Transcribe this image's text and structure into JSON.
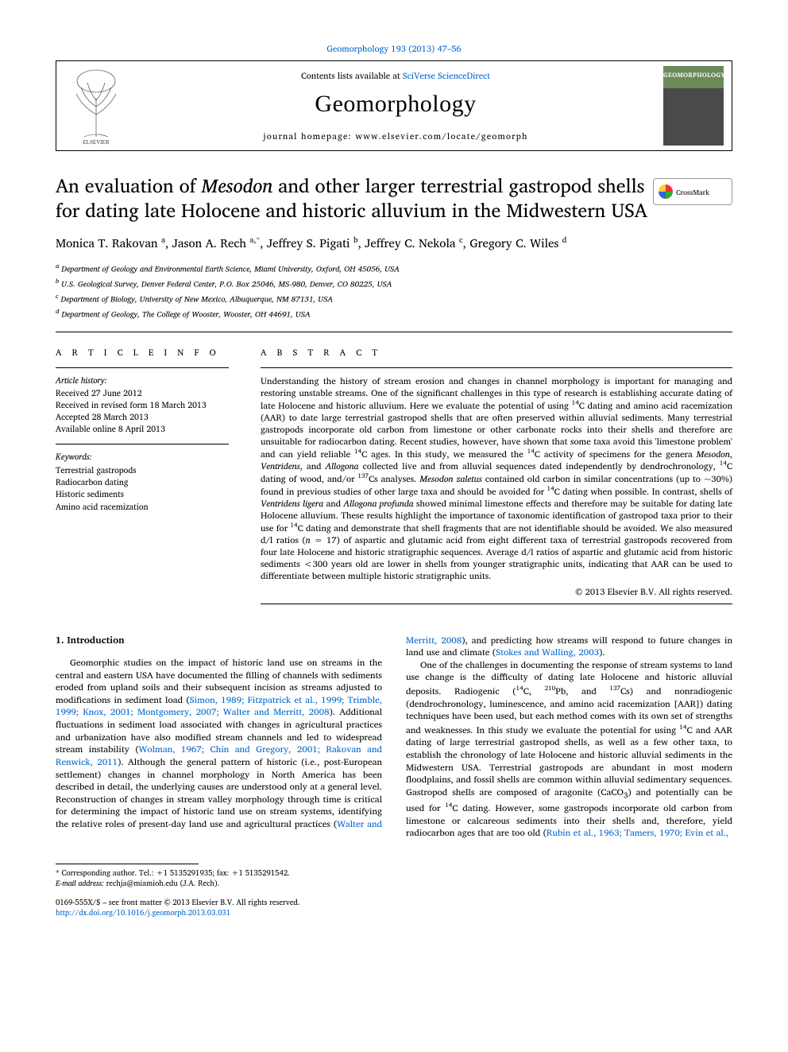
{
  "top_citation": "Geomorphology 193 (2013) 47–56",
  "banner": {
    "contents_prefix": "Contents lists available at ",
    "contents_link": "SciVerse ScienceDirect",
    "journal": "Geomorphology",
    "homepage_prefix": "journal homepage: ",
    "homepage": "www.elsevier.com/locate/geomorph",
    "cover_label": "GEOMORPHOLOGY"
  },
  "crossmark_label": "CrossMark",
  "article": {
    "title_line1": "An evaluation of Mesodon and other larger terrestrial gastropod shells",
    "title_line2": "for dating late Holocene and historic alluvium in the Midwestern USA",
    "authors_html": "Monica T. Rakovan <sup>a</sup>, Jason A. Rech <sup>a,</sup><sup class='corr'>*</sup>, Jeffrey S. Pigati <sup>b</sup>, Jeffrey C. Nekola <sup>c</sup>, Gregory C. Wiles <sup>d</sup>",
    "affiliations": [
      "a  Department of Geology and Environmental Earth Science, Miami University, Oxford, OH 45056, USA",
      "b  U.S. Geological Survey, Denver Federal Center, P.O. Box 25046, MS-980, Denver, CO 80225, USA",
      "c  Department of Biology, University of New Mexico, Albuquerque, NM 87131, USA",
      "d  Department of Geology, The College of Wooster, Wooster, OH 44691, USA"
    ]
  },
  "info": {
    "heading": "A R T I C L E   I N F O",
    "history_label": "Article history:",
    "history": [
      "Received 27 June 2012",
      "Received in revised form 18 March 2013",
      "Accepted 28 March 2013",
      "Available online 8 April 2013"
    ],
    "keywords_label": "Keywords:",
    "keywords": [
      "Terrestrial gastropods",
      "Radiocarbon dating",
      "Historic sediments",
      "Amino acid racemization"
    ]
  },
  "abstract": {
    "heading": "A B S T R A C T",
    "text": "Understanding the history of stream erosion and changes in channel morphology is important for managing and restoring unstable streams. One of the significant challenges in this type of research is establishing accurate dating of late Holocene and historic alluvium. Here we evaluate the potential of using 14C dating and amino acid racemization (AAR) to date large terrestrial gastropod shells that are often preserved within alluvial sediments. Many terrestrial gastropods incorporate old carbon from limestone or other carbonate rocks into their shells and therefore are unsuitable for radiocarbon dating. Recent studies, however, have shown that some taxa avoid this 'limestone problem' and can yield reliable 14C ages. In this study, we measured the 14C activity of specimens for the genera Mesodon, Ventridens, and Allogona collected live and from alluvial sequences dated independently by dendrochronology, 14C dating of wood, and/or 137Cs analyses. Mesodon zaletus contained old carbon in similar concentrations (up to ~30%) found in previous studies of other large taxa and should be avoided for 14C dating when possible. In contrast, shells of Ventridens ligera and Allogona profunda showed minimal limestone effects and therefore may be suitable for dating late Holocene alluvium. These results highlight the importance of taxonomic identification of gastropod taxa prior to their use for 14C dating and demonstrate that shell fragments that are not identifiable should be avoided. We also measured d/l ratios (n = 17) of aspartic and glutamic acid from eight different taxa of terrestrial gastropods recovered from four late Holocene and historic stratigraphic sequences. Average d/l ratios of aspartic and glutamic acid from historic sediments <300 years old are lower in shells from younger stratigraphic units, indicating that AAR can be used to differentiate between multiple historic stratigraphic units.",
    "copyright": "© 2013 Elsevier B.V. All rights reserved."
  },
  "body": {
    "section1_title": "1. Introduction",
    "p1a": "Geomorphic studies on the impact of historic land use on streams in the central and eastern USA have documented the filling of channels with sediments eroded from upland soils and their subsequent incision as streams adjusted to modifications in sediment load (",
    "p1_ref1": "Simon, 1989; Fitzpatrick et al., 1999; Trimble, 1999; Knox, 2001; Montgomery, 2007; Walter and Merritt, 2008",
    "p1b": "). Additional fluctuations in sediment load associated with changes in agricultural practices and urbanization have also modified stream channels and led to widespread stream instability (",
    "p1_ref2": "Wolman, 1967; Chin and Gregory, 2001; Rakovan and Renwick, 2011",
    "p1c": "). Although the general pattern of historic (i.e., post-European settlement) changes in channel morphology in North America has been described in detail, the underlying causes are understood only at a general level. Reconstruction of changes in stream valley morphology through time is critical for determining the impact of historic land use on stream systems, identifying the relative roles of present-day land use and agricultural practices (",
    "p1_ref3": "Walter and Merritt, 2008",
    "p1d": "), and predicting how streams will respond to future changes in land use and climate (",
    "p1_ref4": "Stokes and Walling, 2003",
    "p1e": ").",
    "p2a": "One of the challenges in documenting the response of stream systems to land use change is the difficulty of dating late Holocene and historic alluvial deposits. Radiogenic (14C, 210Pb, and 137Cs) and nonradiogenic (dendrochronology, luminescence, and amino acid racemization [AAR]) dating techniques have been used, but each method comes with its own set of strengths and weaknesses. In this study we evaluate the potential for using 14C and AAR dating of large terrestrial gastropod shells, as well as a few other taxa, to establish the chronology of late Holocene and historic alluvial sediments in the Midwestern USA. Terrestrial gastropods are abundant in most modern floodplains, and fossil shells are common within alluvial sedimentary sequences. Gastropod shells are composed of aragonite (CaCO3) and potentially can be used for 14C dating. However, some gastropods incorporate old carbon from limestone or calcareous sediments into their shells and, therefore, yield radiocarbon ages that are too old (",
    "p2_ref1": "Rubin et al., 1963; Tamers, 1970; Evin et al.,"
  },
  "footnotes": {
    "corr": "* Corresponding author. Tel.: +1 5135291935; fax: +1 5135291542.",
    "email_label": "E-mail address: ",
    "email": "rechja@miamioh.edu",
    "email_suffix": " (J.A. Rech)."
  },
  "bottom": {
    "line1": "0169-555X/$ – see front matter © 2013 Elsevier B.V. All rights reserved.",
    "doi": "http://dx.doi.org/10.1016/j.geomorph.2013.03.031"
  },
  "colors": {
    "link": "#0066cc",
    "text": "#000000",
    "bg": "#ffffff",
    "cover_top": "#6b8a5a",
    "cover_bottom": "#4a4a4a"
  },
  "typography": {
    "body_pt": 11.5,
    "title_pt": 24,
    "journal_pt": 30,
    "authors_pt": 15,
    "affil_pt": 10,
    "footnote_pt": 9.5
  }
}
